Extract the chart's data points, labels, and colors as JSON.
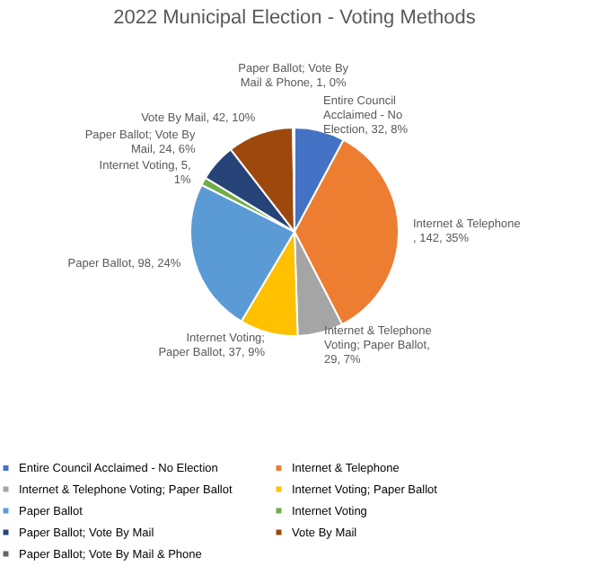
{
  "chart_data": {
    "type": "pie",
    "title": "2022 Municipal Election - Voting Methods",
    "categories": [
      "Entire Council Acclaimed - No Election",
      "Internet & Telephone",
      "Internet & Telephone Voting; Paper Ballot",
      "Internet Voting; Paper Ballot",
      "Paper Ballot",
      "Internet Voting",
      "Paper Ballot; Vote By Mail",
      "Vote By Mail",
      "Paper Ballot; Vote By Mail & Phone"
    ],
    "values": [
      32,
      142,
      29,
      37,
      98,
      5,
      24,
      42,
      1
    ],
    "colors": [
      "#4472c4",
      "#ed7d31",
      "#a5a5a5",
      "#ffc000",
      "#5b9bd5",
      "#70ad47",
      "#264478",
      "#9e480e",
      "#636363"
    ],
    "value_labels": [
      "Entire Council Acclaimed - No Election, 32, 8%",
      "Internet & Telephone , 142, 35%",
      "Internet & Telephone Voting; Paper Ballot, 29, 7%",
      "Internet Voting; Paper Ballot, 37, 9%",
      "Paper Ballot, 98, 24%",
      "Internet Voting, 5, 1%",
      "Paper Ballot; Vote By Mail, 24, 6%",
      "Vote By Mail, 42, 10%",
      "Paper Ballot; Vote By Mail & Phone, 1, 0%"
    ],
    "legend": "bottom"
  }
}
